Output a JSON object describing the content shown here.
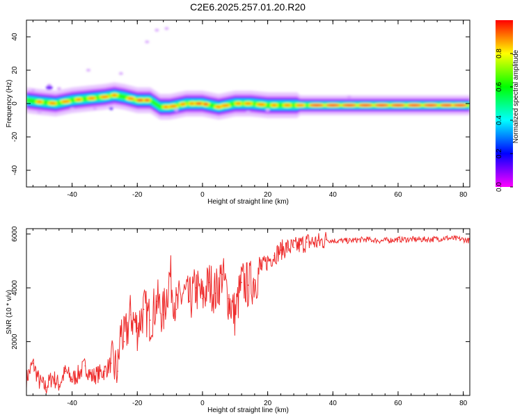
{
  "title": "C2E6.2025.257.01.20.R20",
  "chart_data": [
    {
      "type": "heatmap",
      "name": "spectrogram",
      "xlabel": "Height of straight line (km)",
      "ylabel": "Frequency (Hz)",
      "xlim": [
        -54,
        82
      ],
      "ylim": [
        -50,
        50
      ],
      "xticks": [
        "-40",
        "-20",
        "0",
        "20",
        "40",
        "60",
        "80"
      ],
      "yticks": [
        "40",
        "20",
        "0",
        "-20",
        "-40"
      ],
      "ridge": {
        "description_note": "dominant frequency ridge (Hz) along height",
        "x": [
          -54,
          -50,
          -45,
          -40,
          -35,
          -30,
          -27,
          -24,
          -22,
          -20,
          -16,
          -13,
          -10,
          -5,
          0,
          5,
          10,
          15,
          20,
          30,
          40,
          60,
          81
        ],
        "y": [
          2,
          1,
          0,
          2,
          3,
          4,
          5,
          4,
          3,
          2,
          2,
          -2,
          -2,
          0,
          0,
          -2,
          0,
          0,
          -1,
          -1,
          -1,
          -1,
          -1
        ]
      },
      "colorbar": {
        "label": "Normalized spectral amplitude",
        "range": [
          0,
          1
        ],
        "ticks": [
          "0.0",
          "0.2",
          "0.4",
          "0.6",
          "0.8"
        ],
        "colors": [
          "#ff00ff",
          "#0000ff",
          "#00ffff",
          "#00ff00",
          "#ffff00",
          "#ff0000"
        ]
      }
    },
    {
      "type": "line",
      "name": "snr",
      "xlabel": "Height of straight line (km)",
      "ylabel": "SNR (10 * v/v)",
      "xlim": [
        -54,
        82
      ],
      "ylim": [
        0,
        6200
      ],
      "xticks": [
        "-40",
        "-20",
        "0",
        "20",
        "40",
        "60",
        "80"
      ],
      "yticks": [
        "6000",
        "4000",
        "2000"
      ],
      "color": "#ee2b2b",
      "x": [
        -54,
        -52,
        -50,
        -48,
        -46,
        -44,
        -42,
        -40,
        -38,
        -36,
        -34,
        -32,
        -30,
        -28,
        -26,
        -25,
        -24,
        -22,
        -20,
        -18,
        -16,
        -14,
        -12,
        -10,
        -8,
        -6,
        -4,
        -2,
        0,
        2,
        4,
        6,
        8,
        10,
        12,
        14,
        16,
        18,
        20,
        22,
        24,
        26,
        28,
        30,
        32,
        34,
        36,
        38,
        40,
        45,
        50,
        55,
        60,
        65,
        70,
        75,
        80,
        82
      ],
      "y": [
        600,
        1200,
        500,
        300,
        700,
        400,
        900,
        600,
        800,
        1100,
        700,
        800,
        900,
        1200,
        900,
        2500,
        2000,
        3000,
        2500,
        3200,
        2800,
        3500,
        3000,
        4500,
        3200,
        3800,
        3500,
        4000,
        3600,
        4200,
        3800,
        4500,
        3600,
        3000,
        4200,
        4100,
        4300,
        4700,
        5000,
        5200,
        5400,
        5500,
        5500,
        5600,
        5700,
        5700,
        5700,
        5800,
        5750,
        5750,
        5800,
        5750,
        5800,
        5800,
        5800,
        5850,
        5800,
        5750
      ]
    }
  ]
}
